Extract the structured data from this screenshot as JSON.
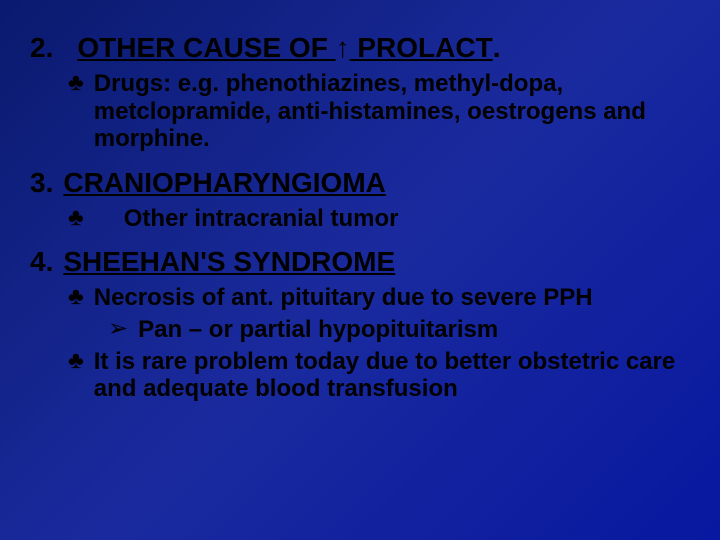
{
  "s2": {
    "num": "2.",
    "title_pre": "OTHER CAUSE OF ",
    "arrow": "↑",
    "title_post": " PROLACT",
    "dot": ".",
    "b1": "Drugs: e.g. phenothiazines, methyl-dopa, metclopramide, anti-histamines, oestrogens and morphine."
  },
  "s3": {
    "num": "3.",
    "title": "CRANIOPHARYNGIOMA",
    "b1": "Other intracranial tumor"
  },
  "s4": {
    "num": "4.",
    "title": "SHEEHAN'S SYNDROME",
    "b1": "Necrosis of ant. pituitary due to severe PPH",
    "sub1": "Pan – or partial hypopituitarism",
    "b2": "It is rare problem today due to better obstetric care and adequate blood transfusion"
  },
  "glyphs": {
    "club": "♣",
    "tri": "➢"
  }
}
